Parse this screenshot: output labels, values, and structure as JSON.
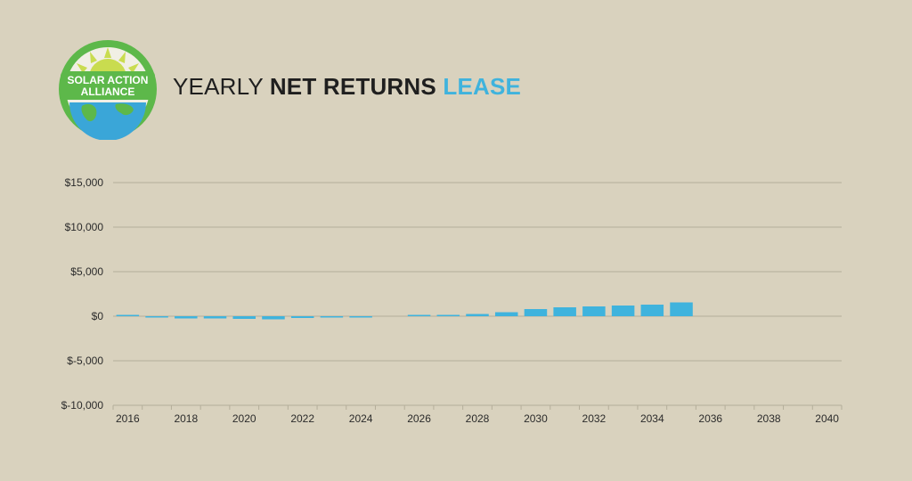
{
  "logo": {
    "line1": "SOLAR ACTION",
    "line2": "ALLIANCE",
    "colors": {
      "ring": "#5db84a",
      "sun": "#c9dc4f",
      "globe": "#3aa6d8",
      "land": "#5db84a"
    }
  },
  "title": {
    "part1": "YEARLY ",
    "part2": "NET RETURNS ",
    "part3": "LEASE"
  },
  "colors": {
    "bar": "#3fb3dd",
    "grid": "#b4ae9a",
    "background": "#d9d2be"
  },
  "chart_data": {
    "type": "bar",
    "x": [
      2016,
      2017,
      2018,
      2019,
      2020,
      2021,
      2022,
      2023,
      2024,
      2025,
      2026,
      2027,
      2028,
      2029,
      2030,
      2031,
      2032,
      2033,
      2034,
      2035,
      2036,
      2037,
      2038,
      2039,
      2040
    ],
    "values": [
      50,
      -80,
      -250,
      -250,
      -300,
      -350,
      -200,
      -150,
      -50,
      0,
      50,
      150,
      250,
      450,
      800,
      1000,
      1100,
      1200,
      1300,
      1550,
      0,
      0,
      0,
      0,
      0
    ],
    "xticks": [
      "2016",
      "2018",
      "2020",
      "2022",
      "2024",
      "2026",
      "2028",
      "2030",
      "2032",
      "2034",
      "2036",
      "2038",
      "2040"
    ],
    "yticks": [
      {
        "value": 15000,
        "label": "$15,000"
      },
      {
        "value": 10000,
        "label": "$10,000"
      },
      {
        "value": 5000,
        "label": "$5,000"
      },
      {
        "value": 0,
        "label": "$0"
      },
      {
        "value": -5000,
        "label": "$-5,000"
      },
      {
        "value": -10000,
        "label": "$-10,000"
      }
    ],
    "ylim": [
      -10000,
      15000
    ],
    "grid": true
  }
}
